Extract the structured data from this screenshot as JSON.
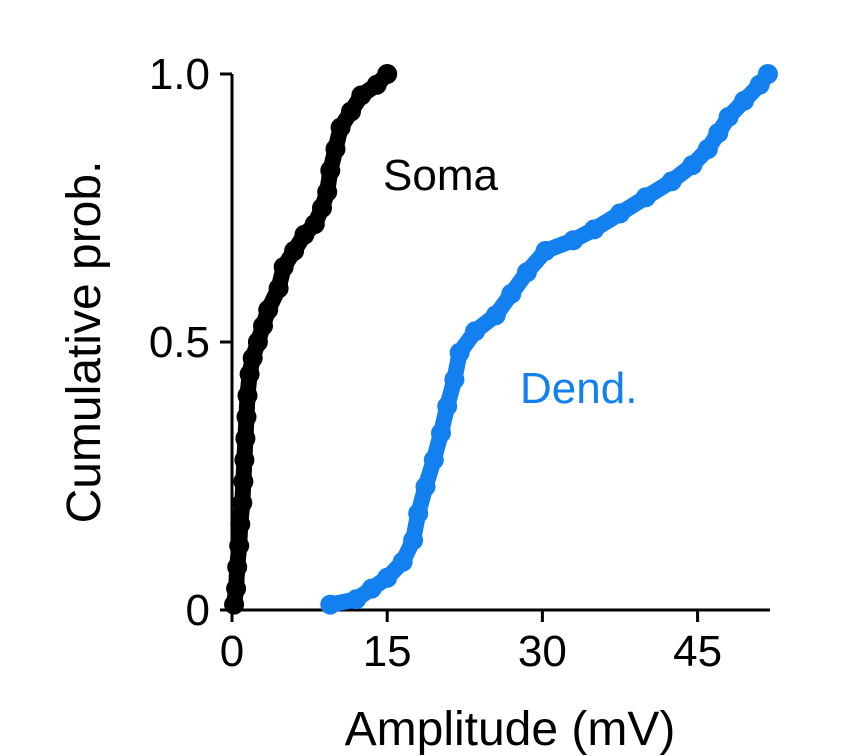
{
  "chart_data": {
    "type": "scatter",
    "title": "",
    "xlabel": "Amplitude (mV)",
    "ylabel": "Cumulative prob.",
    "xlim": [
      0,
      52
    ],
    "ylim": [
      0,
      1.0
    ],
    "x_ticks": [
      {
        "value": 0,
        "label": "0"
      },
      {
        "value": 15,
        "label": "15"
      },
      {
        "value": 30,
        "label": "30"
      },
      {
        "value": 45,
        "label": "45"
      }
    ],
    "y_ticks": [
      {
        "value": 0,
        "label": "0"
      },
      {
        "value": 0.5,
        "label": "0.5"
      },
      {
        "value": 1.0,
        "label": "1.0"
      }
    ],
    "grid": false,
    "legend": "inline labels",
    "series": [
      {
        "name": "Soma",
        "color": "#000000",
        "points": [
          [
            0.2,
            0.01
          ],
          [
            0.4,
            0.04
          ],
          [
            0.5,
            0.08
          ],
          [
            0.7,
            0.12
          ],
          [
            0.8,
            0.16
          ],
          [
            1.0,
            0.2
          ],
          [
            1.1,
            0.24
          ],
          [
            1.2,
            0.28
          ],
          [
            1.3,
            0.32
          ],
          [
            1.4,
            0.36
          ],
          [
            1.5,
            0.4
          ],
          [
            1.7,
            0.44
          ],
          [
            2.0,
            0.47
          ],
          [
            2.5,
            0.5
          ],
          [
            3.0,
            0.53
          ],
          [
            3.5,
            0.56
          ],
          [
            4.5,
            0.6
          ],
          [
            5.0,
            0.64
          ],
          [
            6.0,
            0.67
          ],
          [
            7.0,
            0.7
          ],
          [
            8.0,
            0.72
          ],
          [
            8.7,
            0.75
          ],
          [
            9.2,
            0.78
          ],
          [
            9.5,
            0.82
          ],
          [
            10.0,
            0.86
          ],
          [
            10.5,
            0.9
          ],
          [
            11.5,
            0.93
          ],
          [
            12.5,
            0.96
          ],
          [
            14.0,
            0.98
          ],
          [
            15.0,
            1.0
          ]
        ]
      },
      {
        "name": "Dend.",
        "color": "#1380f0",
        "points": [
          [
            9.5,
            0.01
          ],
          [
            12.0,
            0.02
          ],
          [
            13.5,
            0.04
          ],
          [
            15.0,
            0.06
          ],
          [
            16.5,
            0.09
          ],
          [
            17.5,
            0.13
          ],
          [
            18.0,
            0.18
          ],
          [
            18.7,
            0.23
          ],
          [
            19.5,
            0.28
          ],
          [
            20.2,
            0.33
          ],
          [
            20.8,
            0.38
          ],
          [
            21.5,
            0.43
          ],
          [
            22.0,
            0.48
          ],
          [
            23.5,
            0.52
          ],
          [
            25.5,
            0.55
          ],
          [
            27.0,
            0.59
          ],
          [
            28.5,
            0.63
          ],
          [
            30.3,
            0.67
          ],
          [
            33.0,
            0.69
          ],
          [
            35.0,
            0.71
          ],
          [
            37.5,
            0.74
          ],
          [
            40.0,
            0.77
          ],
          [
            42.5,
            0.8
          ],
          [
            44.5,
            0.83
          ],
          [
            46.0,
            0.86
          ],
          [
            47.0,
            0.89
          ],
          [
            48.0,
            0.92
          ],
          [
            49.5,
            0.95
          ],
          [
            51.0,
            0.98
          ],
          [
            51.8,
            1.0
          ]
        ]
      }
    ]
  }
}
